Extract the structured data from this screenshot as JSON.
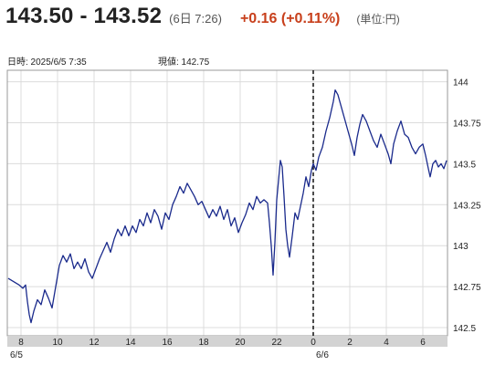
{
  "header": {
    "bid_ask": "143.50 - 143.52",
    "time": "(6日 7:26)",
    "change": "+0.16 (+0.11%)",
    "unit": "(単位:円)"
  },
  "info": {
    "datetime": "日時: 2025/6/5 7:35",
    "current": "現値: 142.75"
  },
  "colors": {
    "line": "#1a2a8c",
    "change": "#c8401c",
    "grid": "#dcdcdc",
    "axis_bar": "#d3d3d3"
  },
  "chart_data": {
    "type": "line",
    "title": "",
    "xlabel": "",
    "ylabel": "",
    "ylim": [
      142.45,
      144.07
    ],
    "y_ticks": [
      "142.5",
      "142.75",
      "143",
      "143.25",
      "143.5",
      "143.75",
      "144"
    ],
    "y_tick_values": [
      142.5,
      142.75,
      143.0,
      143.25,
      143.5,
      143.75,
      144.0
    ],
    "x_ticks": [
      "8",
      "10",
      "12",
      "14",
      "16",
      "18",
      "20",
      "22",
      "0",
      "2",
      "4",
      "6"
    ],
    "day_labels": [
      "6/5",
      "6/6"
    ],
    "day_break_hour": 24,
    "xlim_hours": [
      7.25,
      31.35
    ],
    "series": [
      {
        "points": [
          [
            7.3,
            142.8
          ],
          [
            7.6,
            142.78
          ],
          [
            7.9,
            142.76
          ],
          [
            8.1,
            142.74
          ],
          [
            8.25,
            142.76
          ],
          [
            8.35,
            142.66
          ],
          [
            8.45,
            142.58
          ],
          [
            8.55,
            142.53
          ],
          [
            8.7,
            142.6
          ],
          [
            8.9,
            142.67
          ],
          [
            9.1,
            142.64
          ],
          [
            9.3,
            142.73
          ],
          [
            9.5,
            142.68
          ],
          [
            9.7,
            142.62
          ],
          [
            9.9,
            142.75
          ],
          [
            10.1,
            142.88
          ],
          [
            10.3,
            142.94
          ],
          [
            10.5,
            142.9
          ],
          [
            10.7,
            142.95
          ],
          [
            10.9,
            142.86
          ],
          [
            11.1,
            142.9
          ],
          [
            11.3,
            142.86
          ],
          [
            11.5,
            142.92
          ],
          [
            11.7,
            142.84
          ],
          [
            11.9,
            142.8
          ],
          [
            12.1,
            142.86
          ],
          [
            12.3,
            142.92
          ],
          [
            12.5,
            142.97
          ],
          [
            12.7,
            143.02
          ],
          [
            12.9,
            142.96
          ],
          [
            13.1,
            143.04
          ],
          [
            13.3,
            143.1
          ],
          [
            13.5,
            143.06
          ],
          [
            13.7,
            143.12
          ],
          [
            13.9,
            143.06
          ],
          [
            14.1,
            143.12
          ],
          [
            14.3,
            143.08
          ],
          [
            14.5,
            143.16
          ],
          [
            14.7,
            143.12
          ],
          [
            14.9,
            143.2
          ],
          [
            15.1,
            143.14
          ],
          [
            15.3,
            143.22
          ],
          [
            15.5,
            143.18
          ],
          [
            15.7,
            143.1
          ],
          [
            15.9,
            143.2
          ],
          [
            16.1,
            143.16
          ],
          [
            16.3,
            143.25
          ],
          [
            16.5,
            143.3
          ],
          [
            16.7,
            143.36
          ],
          [
            16.9,
            143.32
          ],
          [
            17.1,
            143.38
          ],
          [
            17.3,
            143.34
          ],
          [
            17.5,
            143.3
          ],
          [
            17.7,
            143.25
          ],
          [
            17.9,
            143.27
          ],
          [
            18.1,
            143.22
          ],
          [
            18.3,
            143.17
          ],
          [
            18.5,
            143.22
          ],
          [
            18.7,
            143.18
          ],
          [
            18.9,
            143.24
          ],
          [
            19.1,
            143.16
          ],
          [
            19.3,
            143.22
          ],
          [
            19.5,
            143.12
          ],
          [
            19.7,
            143.17
          ],
          [
            19.9,
            143.08
          ],
          [
            20.1,
            143.14
          ],
          [
            20.3,
            143.19
          ],
          [
            20.5,
            143.26
          ],
          [
            20.7,
            143.22
          ],
          [
            20.9,
            143.3
          ],
          [
            21.1,
            143.26
          ],
          [
            21.3,
            143.28
          ],
          [
            21.5,
            143.26
          ],
          [
            21.6,
            143.14
          ],
          [
            21.7,
            143.0
          ],
          [
            21.8,
            142.82
          ],
          [
            21.9,
            143.02
          ],
          [
            22.0,
            143.28
          ],
          [
            22.1,
            143.4
          ],
          [
            22.2,
            143.52
          ],
          [
            22.3,
            143.48
          ],
          [
            22.4,
            143.3
          ],
          [
            22.5,
            143.1
          ],
          [
            22.6,
            143.0
          ],
          [
            22.7,
            142.93
          ],
          [
            22.85,
            143.06
          ],
          [
            23.0,
            143.2
          ],
          [
            23.15,
            143.16
          ],
          [
            23.3,
            143.24
          ],
          [
            23.45,
            143.32
          ],
          [
            23.6,
            143.42
          ],
          [
            23.75,
            143.36
          ],
          [
            23.9,
            143.46
          ],
          [
            24.0,
            143.5
          ],
          [
            24.15,
            143.46
          ],
          [
            24.3,
            143.54
          ],
          [
            24.5,
            143.6
          ],
          [
            24.7,
            143.7
          ],
          [
            24.9,
            143.78
          ],
          [
            25.1,
            143.88
          ],
          [
            25.2,
            143.95
          ],
          [
            25.35,
            143.92
          ],
          [
            25.5,
            143.86
          ],
          [
            25.7,
            143.78
          ],
          [
            25.9,
            143.7
          ],
          [
            26.1,
            143.62
          ],
          [
            26.25,
            143.55
          ],
          [
            26.4,
            143.66
          ],
          [
            26.55,
            143.74
          ],
          [
            26.7,
            143.8
          ],
          [
            26.9,
            143.76
          ],
          [
            27.1,
            143.7
          ],
          [
            27.3,
            143.64
          ],
          [
            27.5,
            143.6
          ],
          [
            27.7,
            143.68
          ],
          [
            27.9,
            143.62
          ],
          [
            28.1,
            143.56
          ],
          [
            28.25,
            143.5
          ],
          [
            28.4,
            143.62
          ],
          [
            28.6,
            143.7
          ],
          [
            28.8,
            143.76
          ],
          [
            29.0,
            143.68
          ],
          [
            29.2,
            143.66
          ],
          [
            29.4,
            143.6
          ],
          [
            29.6,
            143.56
          ],
          [
            29.8,
            143.6
          ],
          [
            30.0,
            143.62
          ],
          [
            30.15,
            143.55
          ],
          [
            30.3,
            143.47
          ],
          [
            30.4,
            143.42
          ],
          [
            30.55,
            143.5
          ],
          [
            30.7,
            143.52
          ],
          [
            30.85,
            143.48
          ],
          [
            31.0,
            143.5
          ],
          [
            31.15,
            143.47
          ],
          [
            31.3,
            143.52
          ]
        ]
      }
    ],
    "grid": true,
    "legend": "none"
  }
}
